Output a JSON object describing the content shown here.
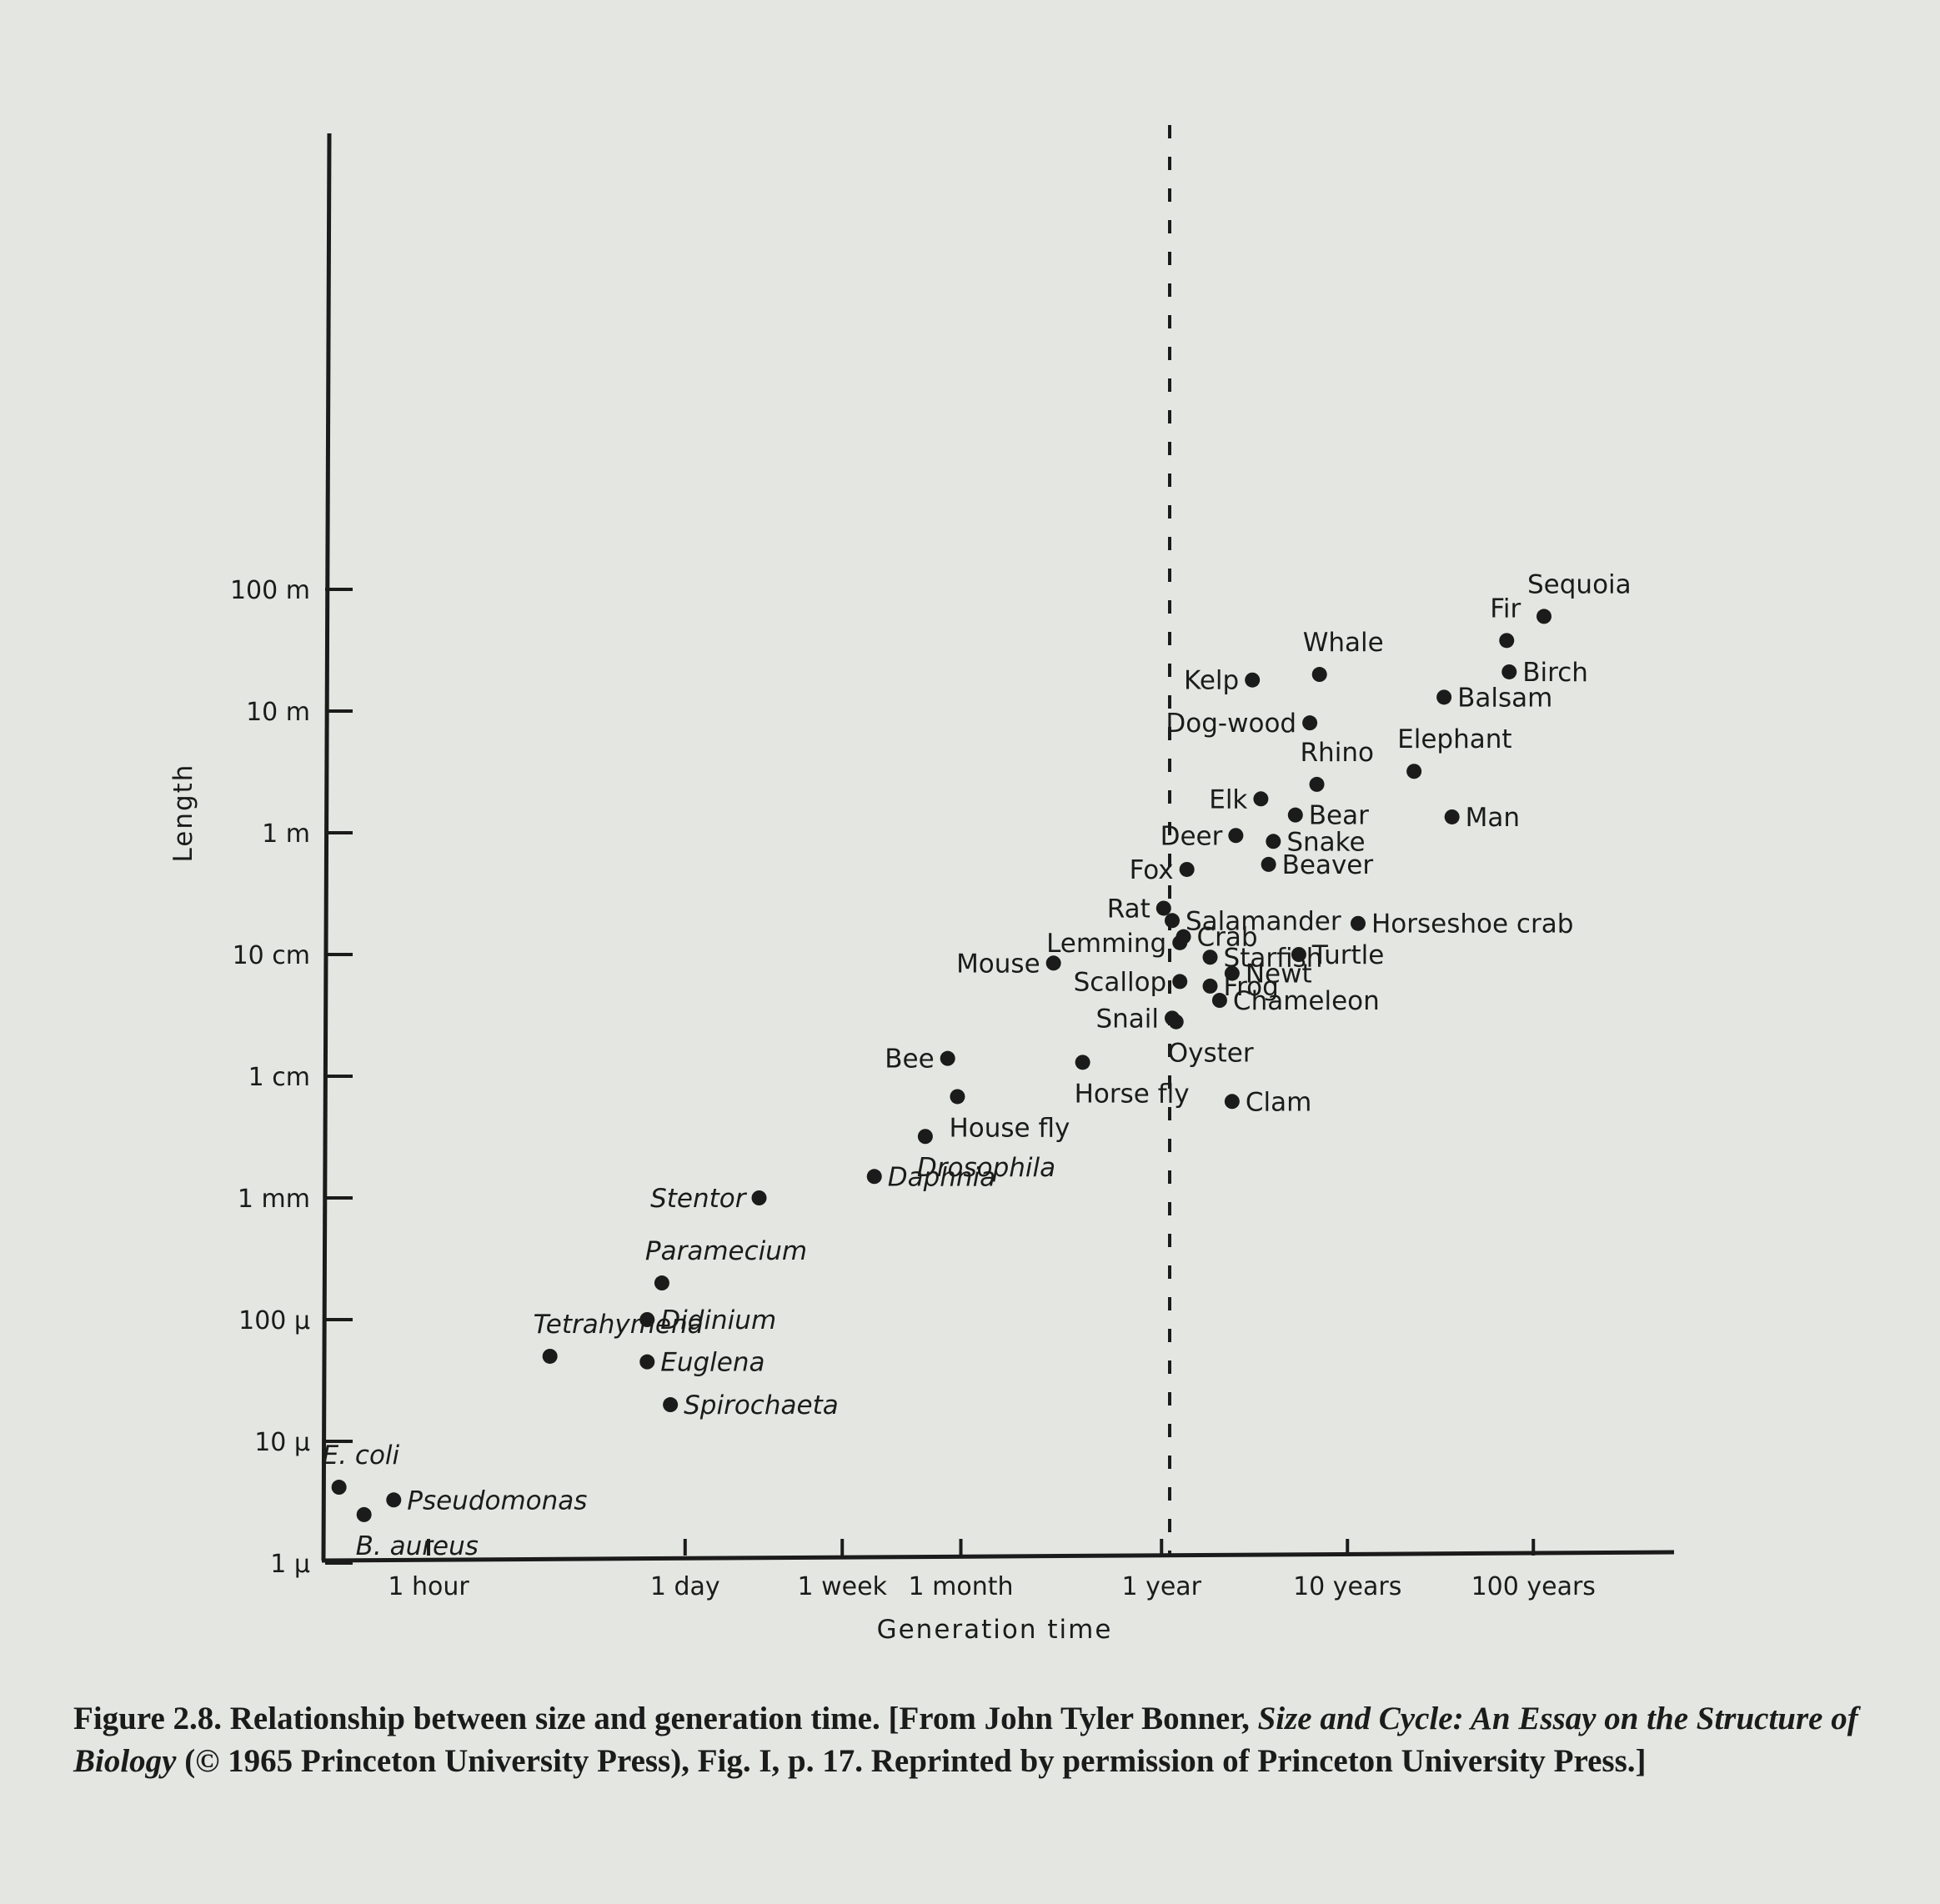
{
  "chart_data": {
    "type": "scatter",
    "xlabel": "Generation time",
    "ylabel": "Length",
    "x_scale": "log",
    "y_scale": "log",
    "x_ticks": [
      {
        "label": "1 hour",
        "hours": 1
      },
      {
        "label": "1 day",
        "hours": 24
      },
      {
        "label": "1 week",
        "hours": 168
      },
      {
        "label": "1 month",
        "hours": 730
      },
      {
        "label": "1 year",
        "hours": 8766
      },
      {
        "label": "10 years",
        "hours": 87660
      },
      {
        "label": "100 years",
        "hours": 876600
      }
    ],
    "y_ticks": [
      {
        "label": "1 μ",
        "meters": 1e-06
      },
      {
        "label": "10 μ",
        "meters": 1e-05
      },
      {
        "label": "100 μ",
        "meters": 0.0001
      },
      {
        "label": "1 mm",
        "meters": 0.001
      },
      {
        "label": "1 cm",
        "meters": 0.01
      },
      {
        "label": "10 cm",
        "meters": 0.1
      },
      {
        "label": "1 m",
        "meters": 1
      },
      {
        "label": "10 m",
        "meters": 10
      },
      {
        "label": "100 m",
        "meters": 100
      }
    ],
    "reference_line": {
      "label": "1 year",
      "x_hours": 8766,
      "style": "dashed"
    },
    "grid": false,
    "points_note": "x = generation time in hours, y = length in meters",
    "points": [
      {
        "name": "Sequoia",
        "x": 1000000,
        "y": 60,
        "italic": false
      },
      {
        "name": "Fir",
        "x": 630000,
        "y": 38,
        "italic": false
      },
      {
        "name": "Whale",
        "x": 62000,
        "y": 20,
        "italic": false
      },
      {
        "name": "Birch",
        "x": 650000,
        "y": 21,
        "italic": false
      },
      {
        "name": "Kelp",
        "x": 27000,
        "y": 18,
        "italic": false
      },
      {
        "name": "Balsam",
        "x": 290000,
        "y": 13,
        "italic": false
      },
      {
        "name": "Dog-wood",
        "x": 55000,
        "y": 8,
        "italic": false
      },
      {
        "name": "Elephant",
        "x": 200000,
        "y": 3.2,
        "italic": false
      },
      {
        "name": "Rhino",
        "x": 60000,
        "y": 2.5,
        "italic": false
      },
      {
        "name": "Elk",
        "x": 30000,
        "y": 1.9,
        "italic": false
      },
      {
        "name": "Bear",
        "x": 46000,
        "y": 1.4,
        "italic": false
      },
      {
        "name": "Man",
        "x": 320000,
        "y": 1.35,
        "italic": false
      },
      {
        "name": "Deer",
        "x": 22000,
        "y": 0.95,
        "italic": false
      },
      {
        "name": "Snake",
        "x": 35000,
        "y": 0.85,
        "italic": false
      },
      {
        "name": "Beaver",
        "x": 33000,
        "y": 0.55,
        "italic": false
      },
      {
        "name": "Fox",
        "x": 12000,
        "y": 0.5,
        "italic": false
      },
      {
        "name": "Rat",
        "x": 9000,
        "y": 0.24,
        "italic": false
      },
      {
        "name": "Salamander",
        "x": 10000,
        "y": 0.19,
        "italic": false
      },
      {
        "name": "Horseshoe crab",
        "x": 100000,
        "y": 0.18,
        "italic": false
      },
      {
        "name": "Crab",
        "x": 11500,
        "y": 0.14,
        "italic": false
      },
      {
        "name": "Lemming",
        "x": 11000,
        "y": 0.125,
        "italic": false
      },
      {
        "name": "Turtle",
        "x": 48000,
        "y": 0.1,
        "italic": false
      },
      {
        "name": "Mouse",
        "x": 2300,
        "y": 0.085,
        "italic": false
      },
      {
        "name": "Starfish",
        "x": 16000,
        "y": 0.095,
        "italic": false
      },
      {
        "name": "Newt",
        "x": 21000,
        "y": 0.07,
        "italic": false
      },
      {
        "name": "Scallop",
        "x": 11000,
        "y": 0.06,
        "italic": false
      },
      {
        "name": "Frog",
        "x": 16000,
        "y": 0.055,
        "italic": false
      },
      {
        "name": "Chameleon",
        "x": 18000,
        "y": 0.042,
        "italic": false
      },
      {
        "name": "Snail",
        "x": 10000,
        "y": 0.03,
        "italic": false
      },
      {
        "name": "Oyster",
        "x": 10500,
        "y": 0.028,
        "italic": false
      },
      {
        "name": "Bee",
        "x": 620,
        "y": 0.014,
        "italic": false
      },
      {
        "name": "Horse fly",
        "x": 3300,
        "y": 0.013,
        "italic": false
      },
      {
        "name": "Clam",
        "x": 21000,
        "y": 0.0062,
        "italic": false
      },
      {
        "name": "House fly",
        "x": 700,
        "y": 0.0068,
        "italic": false
      },
      {
        "name": "Drosophila",
        "x": 470,
        "y": 0.0032,
        "italic": true
      },
      {
        "name": "Daphnia",
        "x": 250,
        "y": 0.0015,
        "italic": true
      },
      {
        "name": "Stentor",
        "x": 60,
        "y": 0.001,
        "italic": true
      },
      {
        "name": "Paramecium",
        "x": 18,
        "y": 0.0002,
        "italic": true
      },
      {
        "name": "Didinium",
        "x": 15,
        "y": 0.0001,
        "italic": true
      },
      {
        "name": "Tetrahymena",
        "x": 4.5,
        "y": 5e-05,
        "italic": true
      },
      {
        "name": "Euglena",
        "x": 15,
        "y": 4.5e-05,
        "italic": true
      },
      {
        "name": "Spirochaeta",
        "x": 20,
        "y": 2e-05,
        "italic": true
      },
      {
        "name": "E. coli",
        "x": 0.33,
        "y": 4.2e-06,
        "italic": true
      },
      {
        "name": "Pseudomonas",
        "x": 0.65,
        "y": 3.3e-06,
        "italic": true
      },
      {
        "name": "B. aureus",
        "x": 0.45,
        "y": 2.5e-06,
        "italic": true
      }
    ]
  },
  "caption": {
    "part1": "Figure 2.8. Relationship between size and generation time. [From John Tyler Bonner, ",
    "book_title": "Size and Cycle: An Essay on the Structure of Biology",
    "part2": " (© 1965 Princeton University Press), Fig. I, p. 17. Reprinted by permission of Princeton University Press.]"
  }
}
